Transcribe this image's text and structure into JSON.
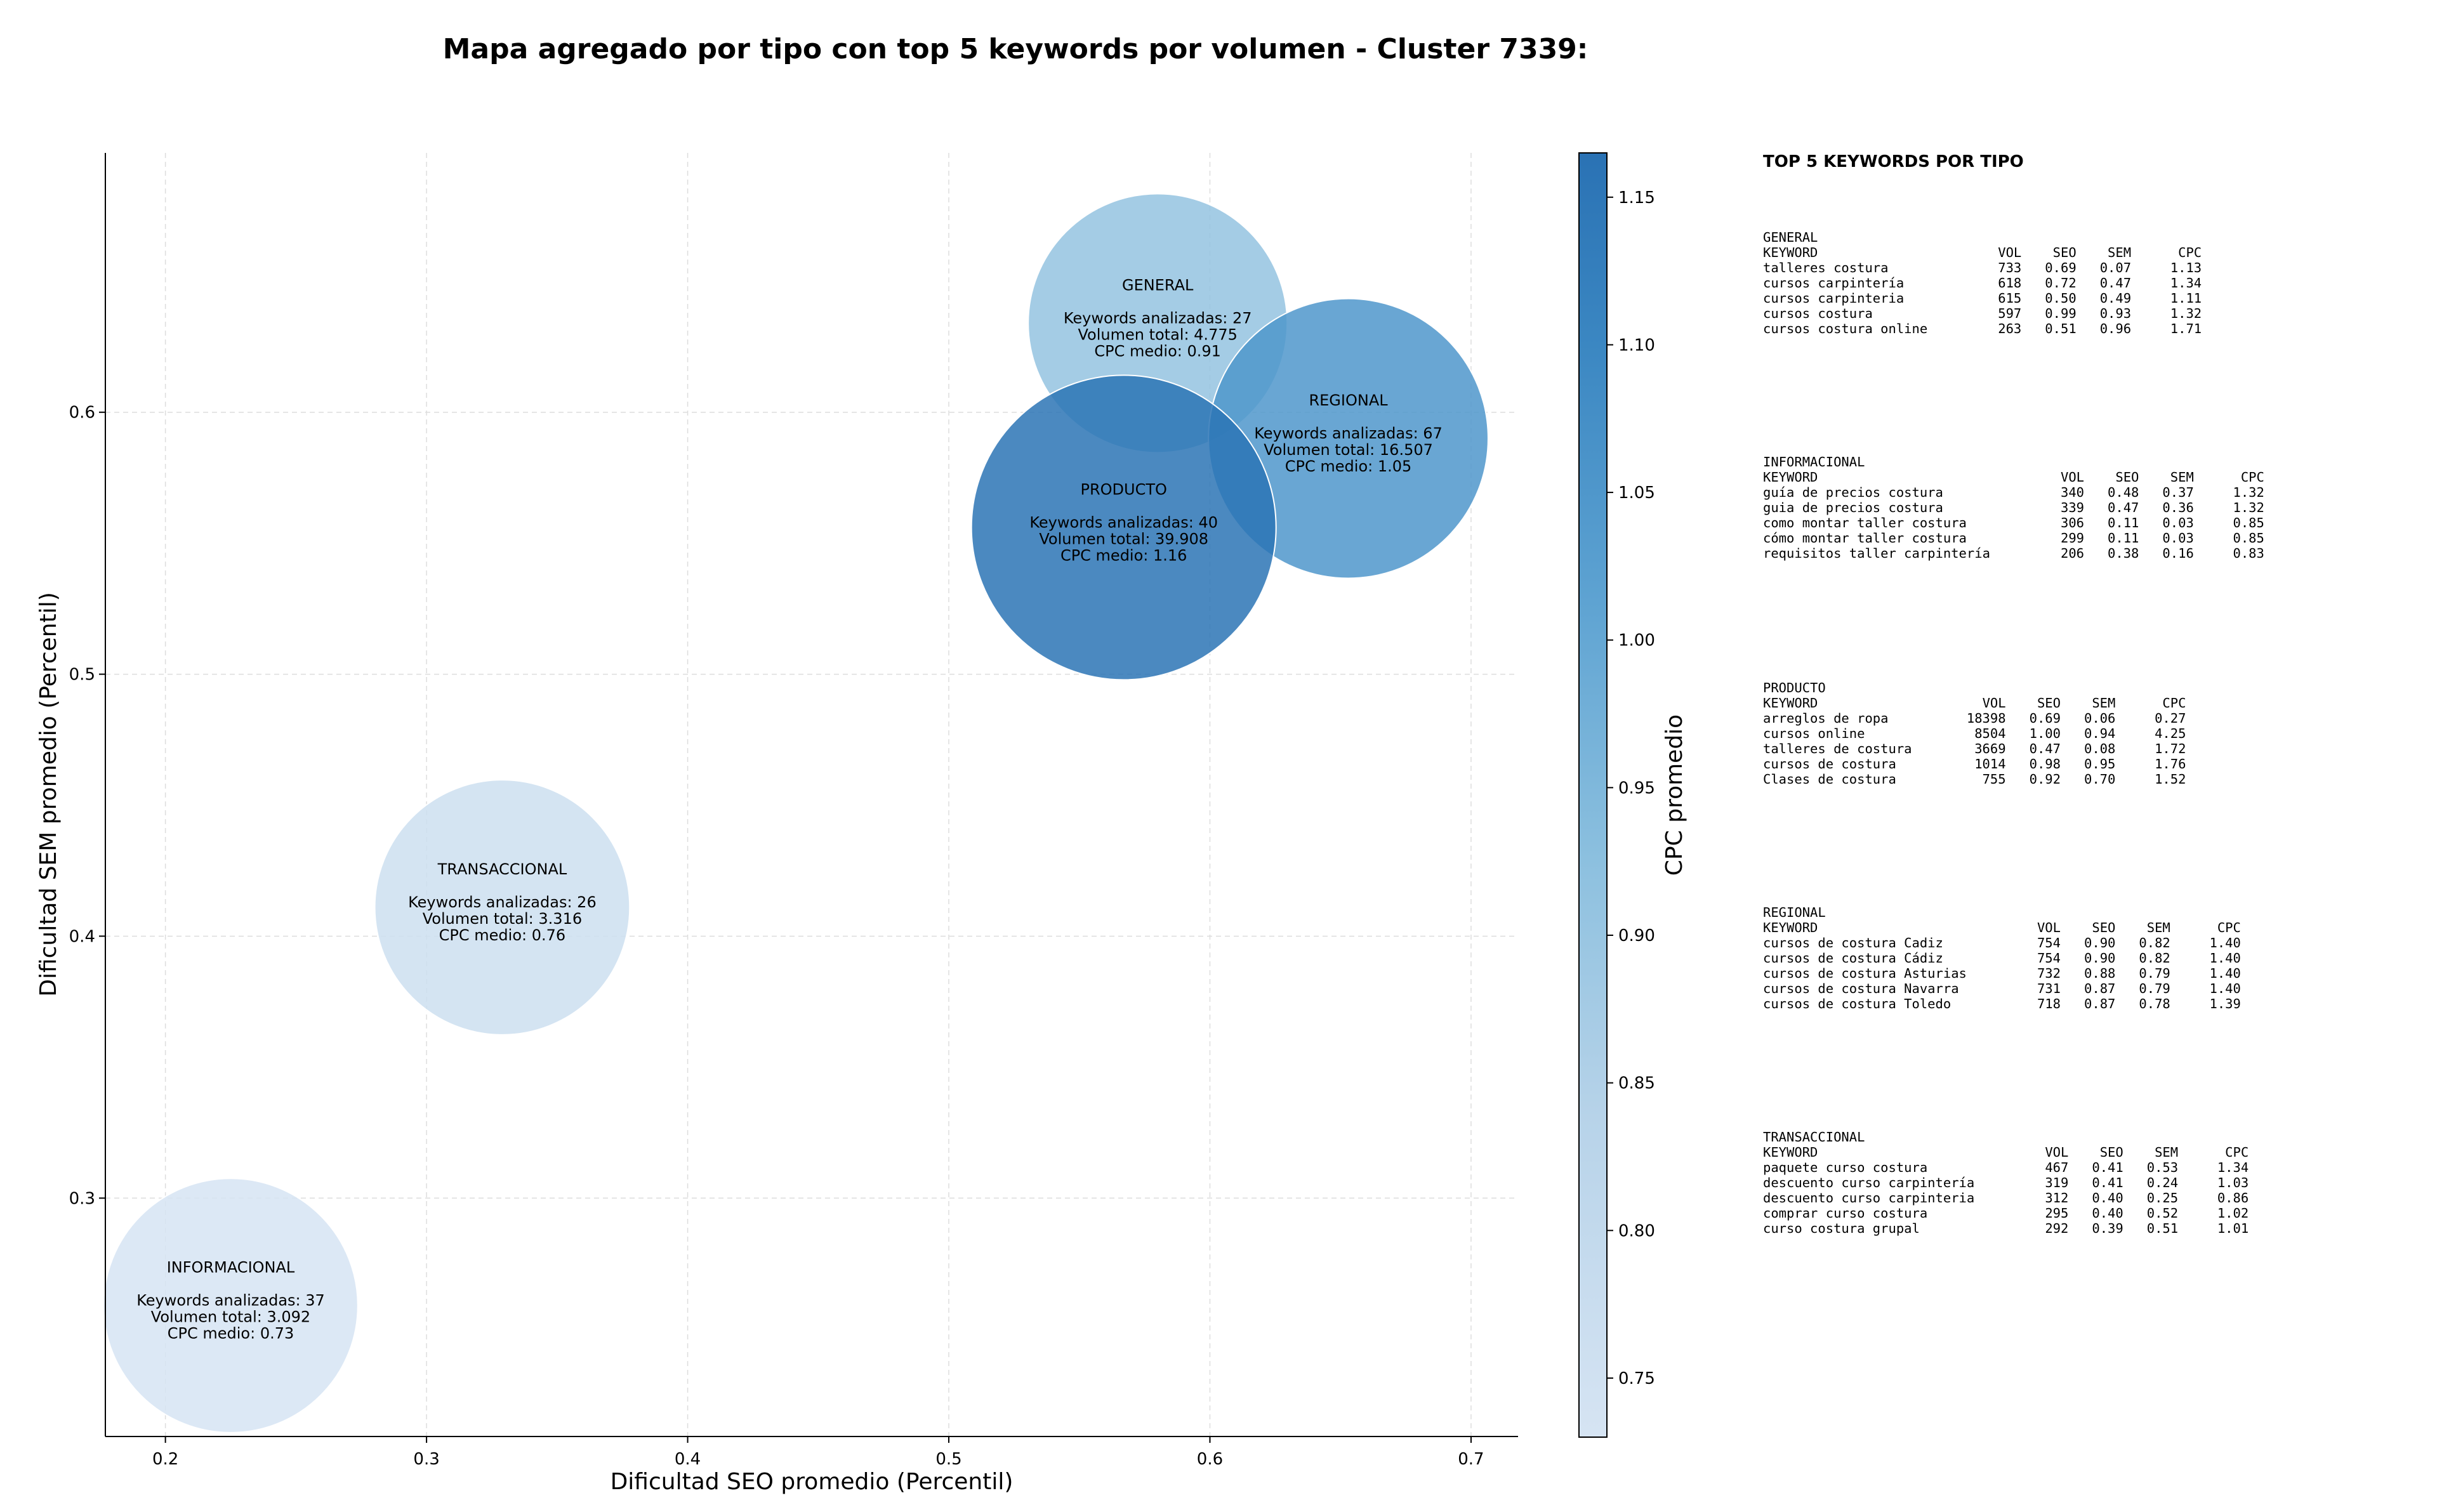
{
  "chart_data": {
    "type": "scatter",
    "title": "Mapa agregado por tipo con top 5 keywords por volumen - Cluster 7339:",
    "xlabel": "Dificultad SEO promedio (Percentil)",
    "ylabel": "Dificultad SEM promedio (Percentil)",
    "xlim": [
      0.177,
      0.718
    ],
    "ylim": [
      0.209,
      0.699
    ],
    "xticks": [
      "0.2",
      "0.3",
      "0.4",
      "0.5",
      "0.6",
      "0.7"
    ],
    "yticks": [
      "0.3",
      "0.4",
      "0.5",
      "0.6"
    ],
    "grid": true,
    "colorbar": {
      "label": "CPC promedio",
      "range": [
        0.73,
        1.165
      ],
      "ticks": [
        "0.75",
        "0.80",
        "0.85",
        "0.90",
        "0.95",
        "1.00",
        "1.05",
        "1.10",
        "1.15"
      ]
    },
    "bubble_size_encodes": "Volumen total",
    "points": [
      {
        "label": "GENERAL",
        "x": 0.58,
        "y": 0.634,
        "cpc": 0.91,
        "volume": 4775,
        "keywords_line": "Keywords analizadas: 27",
        "volume_line": "Volumen total: 4.775",
        "cpc_line": "CPC medio: 0.91"
      },
      {
        "label": "REGIONAL",
        "x": 0.653,
        "y": 0.59,
        "cpc": 1.05,
        "volume": 16507,
        "keywords_line": "Keywords analizadas: 67",
        "volume_line": "Volumen total: 16.507",
        "cpc_line": "CPC medio: 1.05"
      },
      {
        "label": "PRODUCTO",
        "x": 0.567,
        "y": 0.556,
        "cpc": 1.16,
        "volume": 39908,
        "keywords_line": "Keywords analizadas: 40",
        "volume_line": "Volumen total: 39.908",
        "cpc_line": "CPC medio: 1.16"
      },
      {
        "label": "TRANSACCIONAL",
        "x": 0.329,
        "y": 0.411,
        "cpc": 0.76,
        "volume": 3316,
        "keywords_line": "Keywords analizadas: 26",
        "volume_line": "Volumen total: 3.316",
        "cpc_line": "CPC medio: 0.76"
      },
      {
        "label": "INFORMACIONAL",
        "x": 0.225,
        "y": 0.259,
        "cpc": 0.73,
        "volume": 3092,
        "keywords_line": "Keywords analizadas: 37",
        "volume_line": "Volumen total: 3.092",
        "cpc_line": "CPC medio: 0.73"
      }
    ]
  },
  "keywords_panel": {
    "title": "TOP 5 KEYWORDS POR TIPO",
    "headers": {
      "keyword": "KEYWORD",
      "vol": "VOL",
      "seo": "SEO",
      "sem": "SEM",
      "cpc": "CPC"
    },
    "groups": [
      {
        "name": "GENERAL",
        "rows": [
          {
            "keyword": "talleres costura",
            "vol": "733",
            "seo": "0.69",
            "sem": "0.07",
            "cpc": "1.13"
          },
          {
            "keyword": "cursos carpintería",
            "vol": "618",
            "seo": "0.72",
            "sem": "0.47",
            "cpc": "1.34"
          },
          {
            "keyword": "cursos carpinteria",
            "vol": "615",
            "seo": "0.50",
            "sem": "0.49",
            "cpc": "1.11"
          },
          {
            "keyword": "cursos costura",
            "vol": "597",
            "seo": "0.99",
            "sem": "0.93",
            "cpc": "1.32"
          },
          {
            "keyword": "cursos costura online",
            "vol": "263",
            "seo": "0.51",
            "sem": "0.96",
            "cpc": "1.71"
          }
        ]
      },
      {
        "name": "INFORMACIONAL",
        "rows": [
          {
            "keyword": "guía de precios costura",
            "vol": "340",
            "seo": "0.48",
            "sem": "0.37",
            "cpc": "1.32"
          },
          {
            "keyword": "guia de precios costura",
            "vol": "339",
            "seo": "0.47",
            "sem": "0.36",
            "cpc": "1.32"
          },
          {
            "keyword": "como montar taller costura",
            "vol": "306",
            "seo": "0.11",
            "sem": "0.03",
            "cpc": "0.85"
          },
          {
            "keyword": "cómo montar taller costura",
            "vol": "299",
            "seo": "0.11",
            "sem": "0.03",
            "cpc": "0.85"
          },
          {
            "keyword": "requisitos taller carpintería",
            "vol": "206",
            "seo": "0.38",
            "sem": "0.16",
            "cpc": "0.83"
          }
        ]
      },
      {
        "name": "PRODUCTO",
        "rows": [
          {
            "keyword": "arreglos de ropa",
            "vol": "18398",
            "seo": "0.69",
            "sem": "0.06",
            "cpc": "0.27"
          },
          {
            "keyword": "cursos online",
            "vol": "8504",
            "seo": "1.00",
            "sem": "0.94",
            "cpc": "4.25"
          },
          {
            "keyword": "talleres de costura",
            "vol": "3669",
            "seo": "0.47",
            "sem": "0.08",
            "cpc": "1.72"
          },
          {
            "keyword": "cursos de costura",
            "vol": "1014",
            "seo": "0.98",
            "sem": "0.95",
            "cpc": "1.76"
          },
          {
            "keyword": "Clases de costura",
            "vol": "755",
            "seo": "0.92",
            "sem": "0.70",
            "cpc": "1.52"
          }
        ]
      },
      {
        "name": "REGIONAL",
        "rows": [
          {
            "keyword": "cursos de costura Cadiz",
            "vol": "754",
            "seo": "0.90",
            "sem": "0.82",
            "cpc": "1.40"
          },
          {
            "keyword": "cursos de costura Cádiz",
            "vol": "754",
            "seo": "0.90",
            "sem": "0.82",
            "cpc": "1.40"
          },
          {
            "keyword": "cursos de costura Asturias",
            "vol": "732",
            "seo": "0.88",
            "sem": "0.79",
            "cpc": "1.40"
          },
          {
            "keyword": "cursos de costura Navarra",
            "vol": "731",
            "seo": "0.87",
            "sem": "0.79",
            "cpc": "1.40"
          },
          {
            "keyword": "cursos de costura Toledo",
            "vol": "718",
            "seo": "0.87",
            "sem": "0.78",
            "cpc": "1.39"
          }
        ]
      },
      {
        "name": "TRANSACCIONAL",
        "rows": [
          {
            "keyword": "paquete curso costura",
            "vol": "467",
            "seo": "0.41",
            "sem": "0.53",
            "cpc": "1.34"
          },
          {
            "keyword": "descuento curso carpintería",
            "vol": "319",
            "seo": "0.41",
            "sem": "0.24",
            "cpc": "1.03"
          },
          {
            "keyword": "descuento curso carpinteria",
            "vol": "312",
            "seo": "0.40",
            "sem": "0.25",
            "cpc": "0.86"
          },
          {
            "keyword": "comprar curso costura",
            "vol": "295",
            "seo": "0.40",
            "sem": "0.52",
            "cpc": "1.02"
          },
          {
            "keyword": "curso costura grupal",
            "vol": "292",
            "seo": "0.39",
            "sem": "0.51",
            "cpc": "1.01"
          }
        ]
      }
    ]
  }
}
